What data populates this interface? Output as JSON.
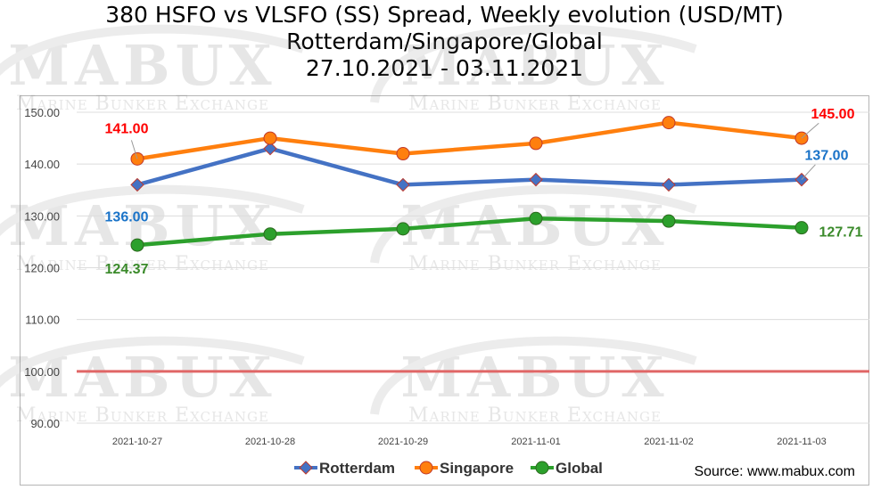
{
  "title": {
    "line1": "380 HSFO vs VLSFO (SS) Spread, Weekly evolution (USD/MT)",
    "line2": "Rotterdam/Singapore/Global",
    "line3": "27.10.2021 - 03.11.2021"
  },
  "watermark": {
    "logo": "MABUX",
    "subtitle": "Marine Bunker Exchange"
  },
  "source": "Source: www.mabux.com",
  "colors": {
    "rotterdam": "#4472c4",
    "singapore": "#ff7f0e",
    "global": "#2ca02c",
    "reference_line": "#e06666",
    "label_red": "#ff0000",
    "label_blue": "#1a73c8",
    "label_green": "#3a8a2a"
  },
  "chart_data": {
    "type": "line",
    "categories": [
      "2021-10-27",
      "2021-10-28",
      "2021-10-29",
      "2021-11-01",
      "2021-11-02",
      "2021-11-03"
    ],
    "ylim": [
      90,
      150
    ],
    "yticks": [
      "90.00",
      "100.00",
      "110.00",
      "120.00",
      "130.00",
      "140.00",
      "150.00"
    ],
    "grid": true,
    "legend_position": "bottom",
    "reference_line": {
      "value": 100
    },
    "series": [
      {
        "name": "Rotterdam",
        "marker": "diamond",
        "values": [
          136,
          143,
          136,
          137,
          136,
          137
        ]
      },
      {
        "name": "Singapore",
        "marker": "circle",
        "values": [
          141,
          145,
          142,
          144,
          148,
          145
        ]
      },
      {
        "name": "Global",
        "marker": "circle",
        "values": [
          124.37,
          126.5,
          127.5,
          129.5,
          129,
          127.71
        ]
      }
    ],
    "data_labels": [
      {
        "series": "Singapore",
        "index": 0,
        "text": "141.00"
      },
      {
        "series": "Singapore",
        "index": 5,
        "text": "145.00"
      },
      {
        "series": "Rotterdam",
        "index": 0,
        "text": "136.00"
      },
      {
        "series": "Rotterdam",
        "index": 5,
        "text": "137.00"
      },
      {
        "series": "Global",
        "index": 0,
        "text": "124.37"
      },
      {
        "series": "Global",
        "index": 5,
        "text": "127.71"
      }
    ]
  }
}
